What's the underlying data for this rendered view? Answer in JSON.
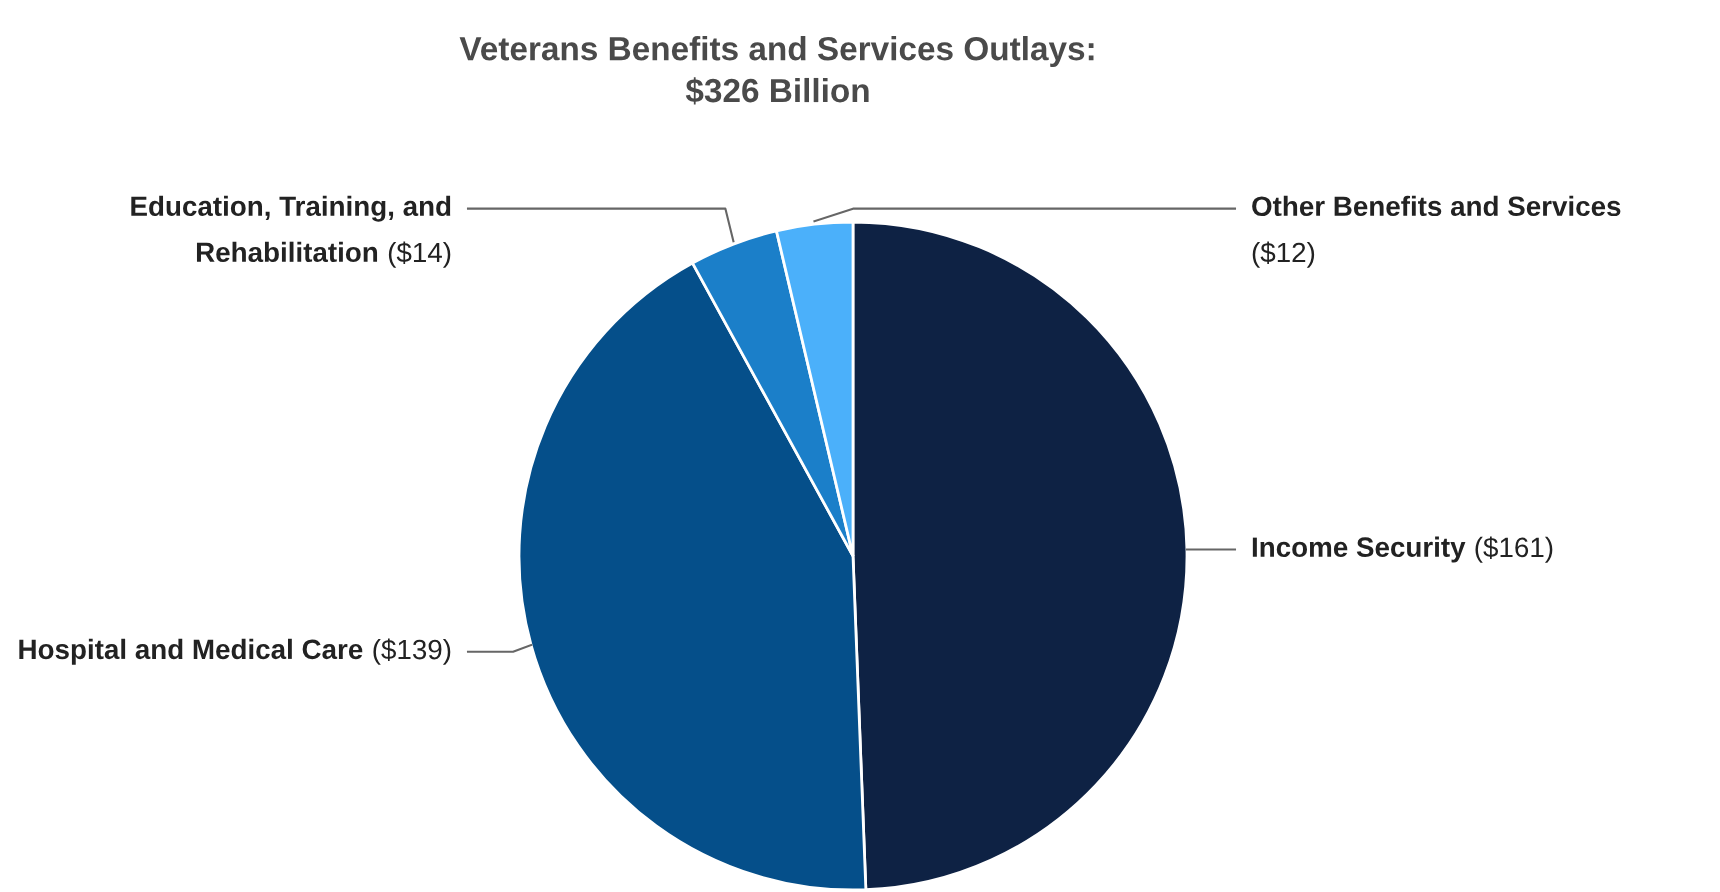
{
  "chart_data": {
    "type": "pie",
    "title": "Veterans Benefits and Services Outlays:\n$326 Billion",
    "categories": [
      "Income Security",
      "Hospital and Medical Care",
      "Education, Training, and\nRehabilitation",
      "Other Benefits and Services"
    ],
    "values": [
      161,
      139,
      14,
      12
    ],
    "colors": [
      "#0e2244",
      "#054f8a",
      "#1b7fc9",
      "#4bb0fa"
    ],
    "value_labels": [
      "($161)",
      "($139)",
      "($14)",
      "($12)"
    ]
  }
}
